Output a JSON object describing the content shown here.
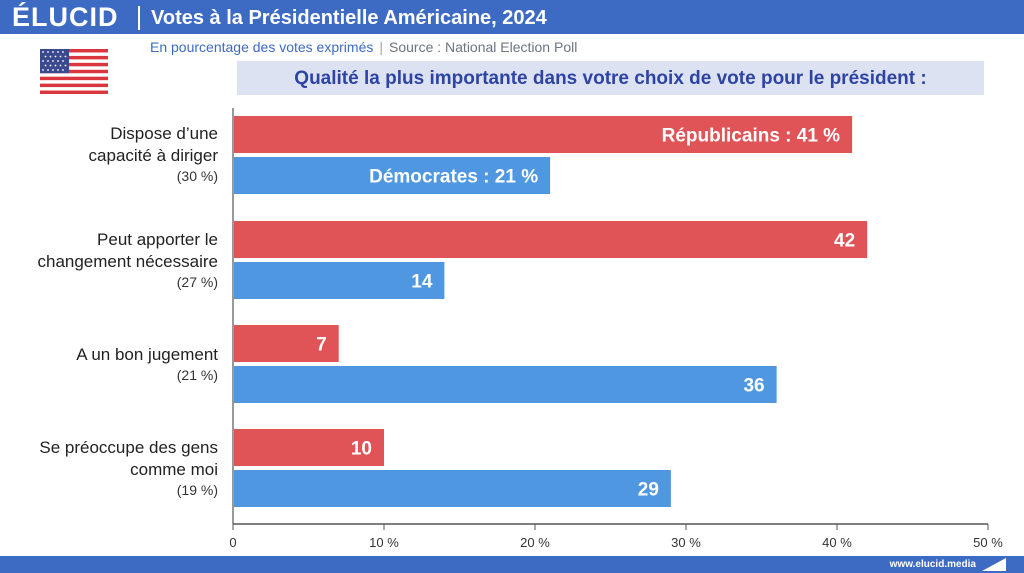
{
  "brand": "ÉLUCID",
  "header": {
    "title": "Votes à la Présidentielle Américaine, 2024"
  },
  "subtitle": {
    "left": "En pourcentage des votes exprimés",
    "separator": "|",
    "source": "Source : National Election Poll"
  },
  "question": "Qualité la plus importante dans votre choix de vote pour le président :",
  "colors": {
    "header": "#3d6bc4",
    "republicans": "#e05356",
    "democrats": "#4f97e0",
    "question_box": "#dde2f3",
    "question_text": "#2d44a4"
  },
  "footer": {
    "url": "www.elucid.media"
  },
  "categories": [
    {
      "name_lines": [
        "Dispose d’une",
        "capacité à diriger"
      ],
      "pct": "(30 %)"
    },
    {
      "name_lines": [
        "Peut apporter le",
        "changement nécessaire"
      ],
      "pct": "(27 %)"
    },
    {
      "name_lines": [
        "A un bon jugement"
      ],
      "pct": "(21 %)"
    },
    {
      "name_lines": [
        "Se préoccupe des gens",
        "comme moi"
      ],
      "pct": "(19 %)"
    }
  ],
  "chart_data": {
    "type": "bar",
    "orientation": "horizontal",
    "categories": [
      "Dispose d’une capacité à diriger (30 %)",
      "Peut apporter le changement nécessaire (27 %)",
      "A un bon jugement (21 %)",
      "Se préoccupe des gens comme moi (19 %)"
    ],
    "series": [
      {
        "name": "Républicains",
        "color": "#e05356",
        "values": [
          41,
          42,
          7,
          10
        ],
        "labels": [
          "Républicains : 41 %",
          "42",
          "7",
          "10"
        ]
      },
      {
        "name": "Démocrates",
        "color": "#4f97e0",
        "values": [
          21,
          14,
          36,
          29
        ],
        "labels": [
          "Démocrates : 21 %",
          "14",
          "36",
          "29"
        ]
      }
    ],
    "xlim": [
      0,
      50
    ],
    "x_ticks": [
      0,
      10,
      20,
      30,
      40,
      50
    ],
    "x_tick_labels": [
      "0",
      "10 %",
      "20 %",
      "30 %",
      "40 %",
      "50 %"
    ],
    "grid": false,
    "legend": "inline labels inside first bars"
  }
}
